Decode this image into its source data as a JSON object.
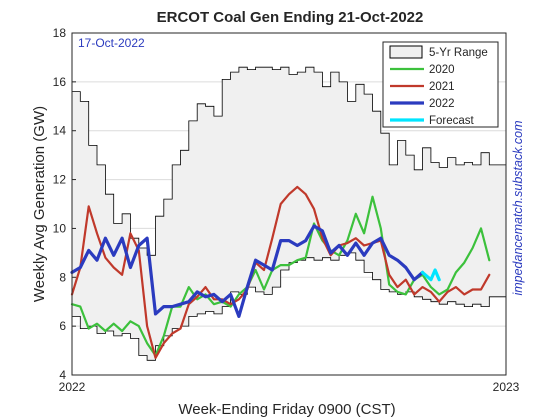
{
  "chart_data": {
    "type": "line",
    "title": "ERCOT Coal Gen Ending 21-Oct-2022",
    "date_annotation": "17-Oct-2022",
    "xlabel": "Week-Ending Friday 0900 (CST)",
    "ylabel": "Weekly Avg Generation (GW)",
    "watermark": "impedancematch.substack.com",
    "xlim": [
      0,
      52
    ],
    "x_ticks": [
      {
        "x": 0,
        "label": "2022"
      },
      {
        "x": 52,
        "label": "2023"
      }
    ],
    "ylim": [
      4,
      18
    ],
    "y_ticks": [
      4,
      6,
      8,
      10,
      12,
      14,
      16,
      18
    ],
    "grid": true,
    "legend": {
      "position": "top-right",
      "entries": [
        {
          "name": "5-Yr Range",
          "color": "#f0f0f0"
        },
        {
          "name": "2020",
          "color": "#3cc13c"
        },
        {
          "name": "2021",
          "color": "#c0392b"
        },
        {
          "name": "2022",
          "color": "#2b3bbf"
        },
        {
          "name": "Forecast",
          "color": "#00e5ff"
        }
      ]
    },
    "range_upper": [
      [
        0,
        15.6
      ],
      [
        1,
        15.6
      ],
      [
        1,
        15.2
      ],
      [
        2,
        15.2
      ],
      [
        2,
        13.4
      ],
      [
        3,
        13.4
      ],
      [
        3,
        12.6
      ],
      [
        4,
        12.6
      ],
      [
        4,
        11.4
      ],
      [
        5,
        11.4
      ],
      [
        5,
        10.2
      ],
      [
        6,
        10.2
      ],
      [
        6,
        10.6
      ],
      [
        7,
        10.6
      ],
      [
        7,
        9.6
      ],
      [
        8,
        9.6
      ],
      [
        8,
        9.2
      ],
      [
        9,
        9.2
      ],
      [
        9,
        8.9
      ],
      [
        10,
        8.9
      ],
      [
        10,
        10.5
      ],
      [
        11,
        10.5
      ],
      [
        11,
        11.2
      ],
      [
        12,
        11.2
      ],
      [
        12,
        12.6
      ],
      [
        13,
        12.6
      ],
      [
        13,
        13.2
      ],
      [
        14,
        13.2
      ],
      [
        14,
        14.4
      ],
      [
        15,
        14.4
      ],
      [
        15,
        15.1
      ],
      [
        16,
        15.1
      ],
      [
        16,
        15.0
      ],
      [
        17,
        15.0
      ],
      [
        17,
        14.6
      ],
      [
        18,
        14.6
      ],
      [
        18,
        16.1
      ],
      [
        19,
        16.1
      ],
      [
        19,
        16.4
      ],
      [
        20,
        16.4
      ],
      [
        20,
        16.6
      ],
      [
        21,
        16.6
      ],
      [
        21,
        16.5
      ],
      [
        22,
        16.5
      ],
      [
        22,
        16.6
      ],
      [
        23,
        16.6
      ],
      [
        23,
        16.6
      ],
      [
        24,
        16.6
      ],
      [
        24,
        16.5
      ],
      [
        25,
        16.5
      ],
      [
        25,
        16.6
      ],
      [
        26,
        16.6
      ],
      [
        26,
        16.3
      ],
      [
        27,
        16.3
      ],
      [
        27,
        16.4
      ],
      [
        28,
        16.4
      ],
      [
        28,
        16.6
      ],
      [
        29,
        16.6
      ],
      [
        29,
        16.4
      ],
      [
        30,
        16.4
      ],
      [
        30,
        15.8
      ],
      [
        31,
        15.8
      ],
      [
        31,
        16.4
      ],
      [
        32,
        16.4
      ],
      [
        32,
        16.0
      ],
      [
        33,
        16.0
      ],
      [
        33,
        15.2
      ],
      [
        34,
        15.2
      ],
      [
        34,
        15.9
      ],
      [
        35,
        15.9
      ],
      [
        35,
        15.5
      ],
      [
        36,
        15.5
      ],
      [
        36,
        14.8
      ],
      [
        37,
        14.8
      ],
      [
        37,
        13.9
      ],
      [
        38,
        13.9
      ],
      [
        38,
        12.6
      ],
      [
        39,
        12.6
      ],
      [
        39,
        13.6
      ],
      [
        40,
        13.6
      ],
      [
        40,
        13.0
      ],
      [
        41,
        13.0
      ],
      [
        41,
        12.4
      ],
      [
        42,
        12.4
      ],
      [
        42,
        13.3
      ],
      [
        43,
        13.3
      ],
      [
        43,
        12.7
      ],
      [
        44,
        12.7
      ],
      [
        44,
        12.5
      ],
      [
        45,
        12.5
      ],
      [
        45,
        12.9
      ],
      [
        46,
        12.9
      ],
      [
        46,
        12.6
      ],
      [
        47,
        12.6
      ],
      [
        47,
        12.7
      ],
      [
        48,
        12.7
      ],
      [
        48,
        12.6
      ],
      [
        49,
        12.6
      ],
      [
        49,
        13.1
      ],
      [
        50,
        13.1
      ],
      [
        50,
        12.6
      ],
      [
        51,
        12.6
      ],
      [
        51,
        12.6
      ],
      [
        52,
        12.6
      ]
    ],
    "range_lower": [
      [
        0,
        6.4
      ],
      [
        1,
        6.4
      ],
      [
        1,
        5.9
      ],
      [
        2,
        5.9
      ],
      [
        2,
        6.0
      ],
      [
        3,
        6.0
      ],
      [
        3,
        5.7
      ],
      [
        4,
        5.7
      ],
      [
        4,
        5.8
      ],
      [
        5,
        5.8
      ],
      [
        5,
        5.6
      ],
      [
        6,
        5.6
      ],
      [
        6,
        5.7
      ],
      [
        7,
        5.7
      ],
      [
        7,
        5.5
      ],
      [
        8,
        5.5
      ],
      [
        8,
        4.8
      ],
      [
        9,
        4.8
      ],
      [
        9,
        4.6
      ],
      [
        10,
        4.6
      ],
      [
        10,
        5.2
      ],
      [
        11,
        5.2
      ],
      [
        11,
        5.6
      ],
      [
        12,
        5.6
      ],
      [
        12,
        5.9
      ],
      [
        13,
        5.9
      ],
      [
        13,
        6.0
      ],
      [
        14,
        6.0
      ],
      [
        14,
        6.4
      ],
      [
        15,
        6.4
      ],
      [
        15,
        6.5
      ],
      [
        16,
        6.5
      ],
      [
        16,
        6.6
      ],
      [
        17,
        6.6
      ],
      [
        17,
        6.5
      ],
      [
        18,
        6.5
      ],
      [
        18,
        6.8
      ],
      [
        19,
        6.8
      ],
      [
        19,
        7.4
      ],
      [
        20,
        7.4
      ],
      [
        20,
        7.3
      ],
      [
        21,
        7.3
      ],
      [
        21,
        7.6
      ],
      [
        22,
        7.6
      ],
      [
        22,
        7.4
      ],
      [
        23,
        7.4
      ],
      [
        23,
        7.3
      ],
      [
        24,
        7.3
      ],
      [
        24,
        7.6
      ],
      [
        25,
        7.6
      ],
      [
        25,
        8.3
      ],
      [
        26,
        8.3
      ],
      [
        26,
        8.6
      ],
      [
        27,
        8.6
      ],
      [
        27,
        8.7
      ],
      [
        28,
        8.7
      ],
      [
        28,
        8.8
      ],
      [
        29,
        8.8
      ],
      [
        29,
        8.7
      ],
      [
        30,
        8.7
      ],
      [
        30,
        8.8
      ],
      [
        31,
        8.8
      ],
      [
        31,
        8.7
      ],
      [
        32,
        8.7
      ],
      [
        32,
        8.9
      ],
      [
        33,
        8.9
      ],
      [
        33,
        9.0
      ],
      [
        34,
        9.0
      ],
      [
        34,
        8.7
      ],
      [
        35,
        8.7
      ],
      [
        35,
        8.2
      ],
      [
        36,
        8.2
      ],
      [
        36,
        7.9
      ],
      [
        37,
        7.9
      ],
      [
        37,
        7.5
      ],
      [
        38,
        7.5
      ],
      [
        38,
        7.4
      ],
      [
        39,
        7.4
      ],
      [
        39,
        7.3
      ],
      [
        40,
        7.3
      ],
      [
        40,
        7.4
      ],
      [
        41,
        7.4
      ],
      [
        41,
        7.2
      ],
      [
        42,
        7.2
      ],
      [
        42,
        7.1
      ],
      [
        43,
        7.1
      ],
      [
        43,
        7.0
      ],
      [
        44,
        7.0
      ],
      [
        44,
        6.9
      ],
      [
        45,
        6.9
      ],
      [
        45,
        7.0
      ],
      [
        46,
        7.0
      ],
      [
        46,
        6.9
      ],
      [
        47,
        6.9
      ],
      [
        47,
        6.8
      ],
      [
        48,
        6.8
      ],
      [
        48,
        6.9
      ],
      [
        49,
        6.9
      ],
      [
        49,
        6.8
      ],
      [
        50,
        6.8
      ],
      [
        50,
        7.2
      ],
      [
        51,
        7.2
      ],
      [
        51,
        7.2
      ],
      [
        52,
        7.2
      ]
    ],
    "series": [
      {
        "name": "2020",
        "color": "#3cc13c",
        "width": 2.2,
        "points": [
          [
            0,
            6.9
          ],
          [
            1,
            6.8
          ],
          [
            2,
            5.9
          ],
          [
            3,
            6.1
          ],
          [
            4,
            5.8
          ],
          [
            5,
            6.1
          ],
          [
            6,
            5.8
          ],
          [
            7,
            6.2
          ],
          [
            8,
            6.0
          ],
          [
            9,
            5.3
          ],
          [
            10,
            4.8
          ],
          [
            11,
            5.6
          ],
          [
            12,
            6.8
          ],
          [
            13,
            6.8
          ],
          [
            14,
            7.6
          ],
          [
            15,
            7.1
          ],
          [
            16,
            7.3
          ],
          [
            17,
            6.9
          ],
          [
            18,
            7.0
          ],
          [
            19,
            6.8
          ],
          [
            20,
            7.3
          ],
          [
            21,
            7.6
          ],
          [
            22,
            8.3
          ],
          [
            23,
            7.5
          ],
          [
            24,
            8.3
          ],
          [
            25,
            8.5
          ],
          [
            26,
            8.5
          ],
          [
            27,
            8.7
          ],
          [
            28,
            8.8
          ],
          [
            29,
            10.2
          ],
          [
            30,
            9.5
          ],
          [
            31,
            9.1
          ],
          [
            32,
            8.9
          ],
          [
            33,
            9.5
          ],
          [
            34,
            10.6
          ],
          [
            35,
            9.8
          ],
          [
            36,
            11.3
          ],
          [
            37,
            10.0
          ],
          [
            38,
            7.7
          ],
          [
            39,
            7.4
          ],
          [
            40,
            7.3
          ],
          [
            41,
            7.9
          ],
          [
            42,
            8.1
          ],
          [
            43,
            7.6
          ],
          [
            44,
            7.3
          ],
          [
            45,
            7.5
          ],
          [
            46,
            8.2
          ],
          [
            47,
            8.6
          ],
          [
            48,
            9.2
          ],
          [
            49,
            10.0
          ],
          [
            50,
            8.7
          ]
        ]
      },
      {
        "name": "2021",
        "color": "#c0392b",
        "width": 2.2,
        "points": [
          [
            0,
            7.3
          ],
          [
            1,
            8.4
          ],
          [
            2,
            10.9
          ],
          [
            3,
            9.8
          ],
          [
            4,
            8.8
          ],
          [
            5,
            8.4
          ],
          [
            6,
            8.1
          ],
          [
            7,
            9.8
          ],
          [
            8,
            9.1
          ],
          [
            9,
            6.0
          ],
          [
            10,
            4.7
          ],
          [
            11,
            5.3
          ],
          [
            12,
            5.7
          ],
          [
            13,
            5.9
          ],
          [
            14,
            6.9
          ],
          [
            15,
            7.2
          ],
          [
            16,
            7.6
          ],
          [
            17,
            7.1
          ],
          [
            18,
            7.1
          ],
          [
            19,
            6.9
          ],
          [
            20,
            7.1
          ],
          [
            21,
            7.5
          ],
          [
            22,
            8.6
          ],
          [
            23,
            8.3
          ],
          [
            24,
            9.6
          ],
          [
            25,
            11.0
          ],
          [
            26,
            11.4
          ],
          [
            27,
            11.7
          ],
          [
            28,
            11.4
          ],
          [
            29,
            10.8
          ],
          [
            30,
            9.6
          ],
          [
            31,
            8.9
          ],
          [
            32,
            9.3
          ],
          [
            33,
            9.4
          ],
          [
            34,
            9.6
          ],
          [
            35,
            9.3
          ],
          [
            36,
            9.4
          ],
          [
            37,
            9.5
          ],
          [
            38,
            8.1
          ],
          [
            39,
            7.6
          ],
          [
            40,
            7.9
          ],
          [
            41,
            7.3
          ],
          [
            42,
            7.6
          ],
          [
            43,
            7.4
          ],
          [
            44,
            7.0
          ],
          [
            45,
            7.4
          ],
          [
            46,
            7.6
          ],
          [
            47,
            7.3
          ],
          [
            48,
            7.5
          ],
          [
            49,
            7.5
          ],
          [
            50,
            8.1
          ]
        ]
      },
      {
        "name": "2022",
        "color": "#2b3bbf",
        "width": 3.2,
        "points": [
          [
            0,
            8.2
          ],
          [
            1,
            8.4
          ],
          [
            2,
            9.1
          ],
          [
            3,
            8.7
          ],
          [
            4,
            9.6
          ],
          [
            5,
            8.9
          ],
          [
            6,
            9.6
          ],
          [
            7,
            8.4
          ],
          [
            8,
            9.3
          ],
          [
            9,
            9.6
          ],
          [
            10,
            6.5
          ],
          [
            11,
            6.8
          ],
          [
            12,
            6.8
          ],
          [
            13,
            6.9
          ],
          [
            14,
            7.0
          ],
          [
            15,
            7.4
          ],
          [
            16,
            7.2
          ],
          [
            17,
            7.3
          ],
          [
            18,
            7.0
          ],
          [
            19,
            7.3
          ],
          [
            20,
            6.4
          ],
          [
            21,
            7.6
          ],
          [
            22,
            8.7
          ],
          [
            23,
            8.5
          ],
          [
            24,
            8.3
          ],
          [
            25,
            9.5
          ],
          [
            26,
            9.5
          ],
          [
            27,
            9.3
          ],
          [
            28,
            9.5
          ],
          [
            29,
            10.1
          ],
          [
            30,
            9.9
          ],
          [
            31,
            9.0
          ],
          [
            32,
            9.3
          ],
          [
            33,
            8.9
          ],
          [
            34,
            9.4
          ],
          [
            35,
            8.9
          ],
          [
            36,
            9.4
          ],
          [
            37,
            9.6
          ],
          [
            38,
            8.9
          ],
          [
            39,
            8.7
          ],
          [
            40,
            8.4
          ],
          [
            41,
            7.9
          ],
          [
            42,
            8.2
          ]
        ]
      },
      {
        "name": "Forecast",
        "color": "#00e5ff",
        "width": 3.2,
        "points": [
          [
            42,
            8.2
          ],
          [
            43,
            7.9
          ],
          [
            43.5,
            8.3
          ],
          [
            44,
            7.9
          ]
        ]
      }
    ]
  }
}
